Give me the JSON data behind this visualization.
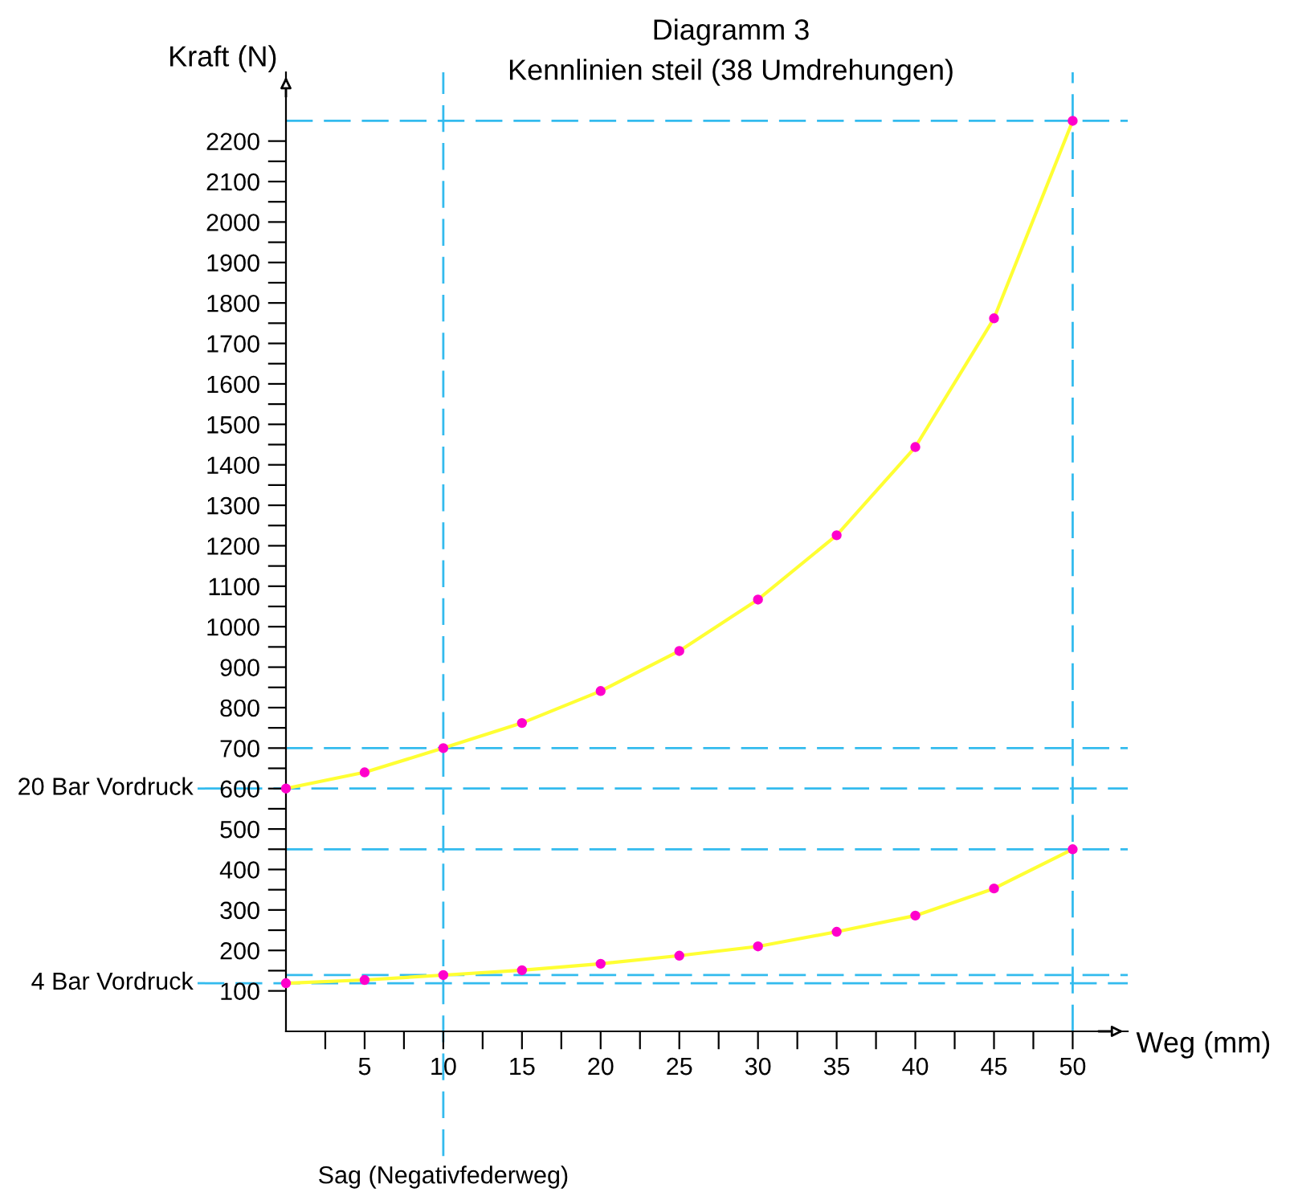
{
  "chart_data": {
    "type": "line",
    "title": "Diagramm 3",
    "subtitle": "Kennlinien steil (38 Umdrehungen)",
    "xlabel": "Weg (mm)",
    "ylabel": "Kraft (N)",
    "x": [
      0,
      5,
      10,
      15,
      20,
      25,
      30,
      35,
      40,
      45,
      50
    ],
    "series": [
      {
        "color": "#ffff33",
        "colors": [
          "#ff00cc",
          "#ff00cc",
          "#ff00cc",
          "#ff00cc",
          "#ff00cc",
          "#ff00cc",
          "#ff00cc",
          "#ff00cc",
          "#ff00cc",
          "#ff00cc",
          "#ff00cc"
        ],
        "values": [
          600,
          640,
          700,
          762,
          841,
          940,
          1067,
          1226,
          1444,
          1762,
          2250
        ]
      },
      {
        "color": "#ffff33",
        "colors": [
          "#ff00cc",
          "#ff00cc",
          "#ff00cc",
          "#ff00cc",
          "#ff00cc",
          "#ff00cc",
          "#ff00cc",
          "#ff00cc",
          "#ff00cc",
          "#ff00cc",
          "#ff00cc"
        ],
        "values": [
          119,
          127,
          139,
          151,
          167,
          187,
          210,
          246,
          286,
          353,
          450
        ]
      }
    ],
    "marker": "circle",
    "line_style": "solid",
    "grid": false,
    "legend": false,
    "xlim": [
      0,
      53.5
    ],
    "ylim": [
      0,
      2370
    ],
    "xticks": [
      {
        "value": 2.5,
        "label": null
      },
      5,
      {
        "value": 7.5,
        "label": null
      },
      10,
      {
        "value": 12.5,
        "label": null
      },
      15,
      {
        "value": 17.5,
        "label": null
      },
      20,
      {
        "value": 22.5,
        "label": null
      },
      25,
      {
        "value": 27.5,
        "label": null
      },
      30,
      {
        "value": 32.5,
        "label": null
      },
      35,
      {
        "value": 37.5,
        "label": null
      },
      40,
      {
        "value": 42.5,
        "label": null
      },
      45,
      {
        "value": 47.5,
        "label": null
      },
      50
    ],
    "yticks": [
      100,
      {
        "value": 150,
        "label": null
      },
      200,
      {
        "value": 250,
        "label": null
      },
      300,
      {
        "value": 350,
        "label": null
      },
      400,
      {
        "value": 450,
        "label": null
      },
      500,
      {
        "value": 550,
        "label": null
      },
      600,
      {
        "value": 650,
        "label": null
      },
      700,
      {
        "value": 750,
        "label": null
      },
      800,
      {
        "value": 850,
        "label": null
      },
      900,
      {
        "value": 950,
        "label": null
      },
      1000,
      {
        "value": 1050,
        "label": null
      },
      1100,
      {
        "value": 1150,
        "label": null
      },
      1200,
      {
        "value": 1250,
        "label": null
      },
      1300,
      {
        "value": 1350,
        "label": null
      },
      1400,
      {
        "value": 1450,
        "label": null
      },
      1500,
      {
        "value": 1550,
        "label": null
      },
      1600,
      {
        "value": 1650,
        "label": null
      },
      1700,
      {
        "value": 1750,
        "label": null
      },
      1800,
      {
        "value": 1850,
        "label": null
      },
      1900,
      {
        "value": 1950,
        "label": null
      },
      2000,
      {
        "value": 2050,
        "label": null
      },
      2100,
      {
        "value": 2150,
        "label": null
      },
      2200
    ],
    "ref_lines": [
      {
        "axis": "y",
        "value": 2250,
        "color": "#33bbee",
        "line_style": "dashed"
      },
      {
        "axis": "y",
        "value": 700,
        "color": "#33bbee",
        "line_style": "dashed"
      },
      {
        "axis": "y",
        "value": 600,
        "label": "20 Bar Vordruck",
        "color": "#33bbee",
        "line_style": "dashed"
      },
      {
        "axis": "y",
        "value": 450,
        "color": "#33bbee",
        "line_style": "dashed"
      },
      {
        "axis": "y",
        "value": 139,
        "color": "#33bbee",
        "line_style": "dashed"
      },
      {
        "axis": "y",
        "value": 119,
        "label": "4 Bar Vordruck",
        "color": "#33bbee",
        "line_style": "dashed"
      },
      {
        "axis": "x",
        "value": 10,
        "label": "Sag (Negativfederweg)",
        "color": "#33bbee",
        "line_style": "dashed"
      },
      {
        "axis": "x",
        "value": 50,
        "color": "#33bbee",
        "line_style": "dashed"
      }
    ]
  }
}
